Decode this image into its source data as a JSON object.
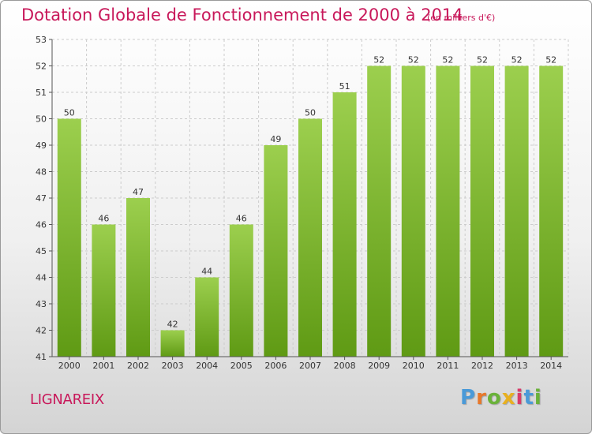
{
  "title": "Dotation Globale de Fonctionnement de 2000 à 2014",
  "subtitle": "(en milliers d'€)",
  "commune": "LIGNAREIX",
  "logo": {
    "text": "Proxiti",
    "letter_colors": [
      "#4a9ad8",
      "#e8782a",
      "#6ab23a",
      "#e8b020",
      "#d83a6a",
      "#4a9ad8",
      "#6ab23a"
    ]
  },
  "colors": {
    "title": "#c8185a",
    "bar_light": "#9ccf4e",
    "bar_dark": "#5f9a14",
    "grid": "#cccccc",
    "axis": "#555555"
  },
  "chart_data": {
    "type": "bar",
    "categories": [
      "2000",
      "2001",
      "2002",
      "2003",
      "2004",
      "2005",
      "2006",
      "2007",
      "2008",
      "2009",
      "2010",
      "2011",
      "2012",
      "2013",
      "2014"
    ],
    "values": [
      50,
      46,
      47,
      42,
      44,
      46,
      49,
      50,
      51,
      52,
      52,
      52,
      52,
      52,
      52
    ],
    "title": "Dotation Globale de Fonctionnement de 2000 à 2014",
    "subtitle": "(en milliers d'€)",
    "xlabel": "",
    "ylabel": "",
    "ylim": [
      41,
      53
    ],
    "yticks": [
      41,
      42,
      43,
      44,
      45,
      46,
      47,
      48,
      49,
      50,
      51,
      52,
      53
    ],
    "grid": true
  }
}
